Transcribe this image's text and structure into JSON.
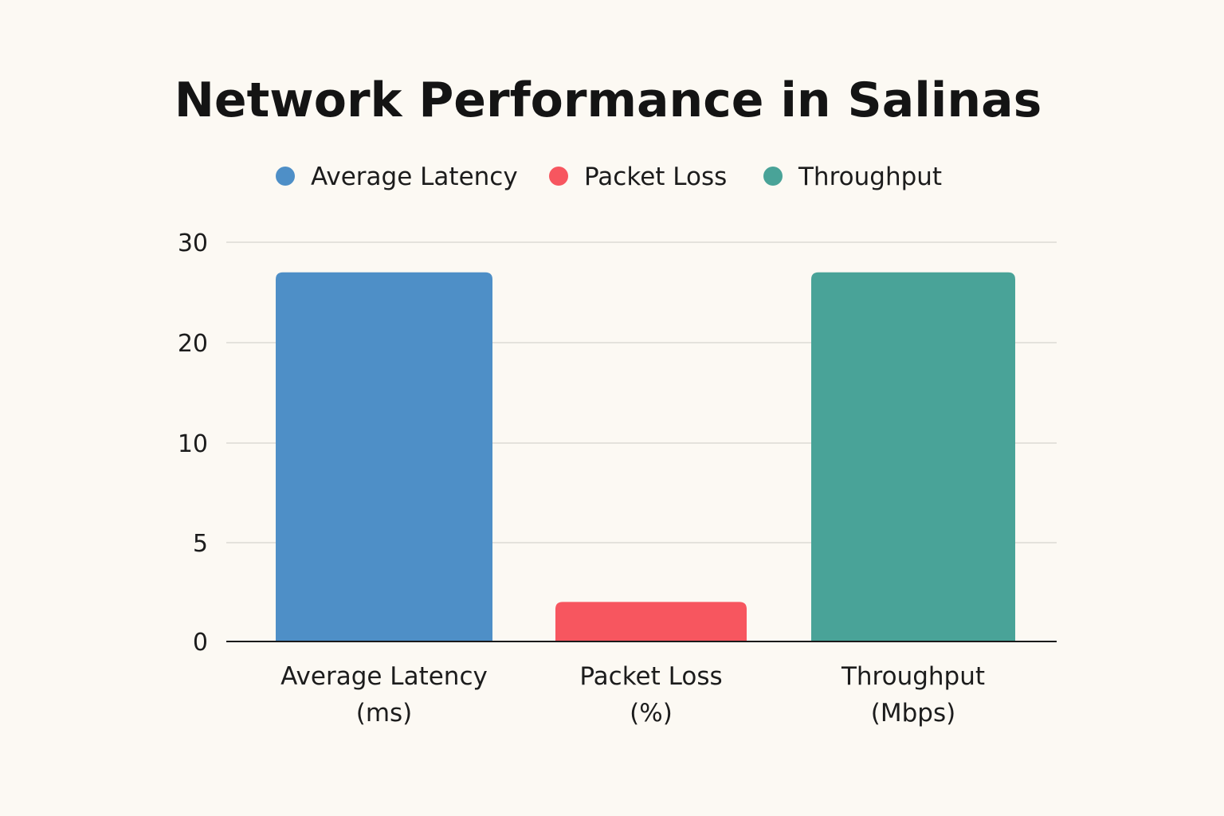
{
  "chart_data": {
    "type": "bar",
    "title": "Network Performance in Salinas",
    "categories": [
      [
        "Average Latency",
        "(ms)"
      ],
      [
        "Packet Loss",
        "(%)"
      ],
      [
        "Throughput",
        "(Mbps)"
      ]
    ],
    "series": [
      {
        "name": "Average Latency",
        "color": "#4e8fc7",
        "values": [
          27,
          null,
          null
        ]
      },
      {
        "name": "Packet Loss",
        "color": "#f7565f",
        "values": [
          null,
          2,
          null
        ]
      },
      {
        "name": "Throughput",
        "color": "#49a398",
        "values": [
          null,
          null,
          27
        ]
      }
    ],
    "values": [
      27,
      2,
      27
    ],
    "colors": [
      "#4e8fc7",
      "#f7565f",
      "#49a398"
    ],
    "y_ticks": [
      0,
      5,
      10,
      20,
      30
    ],
    "ylim": [
      0,
      30
    ],
    "xlabel": "",
    "ylabel": "",
    "grid": true,
    "legend": "top-center"
  }
}
